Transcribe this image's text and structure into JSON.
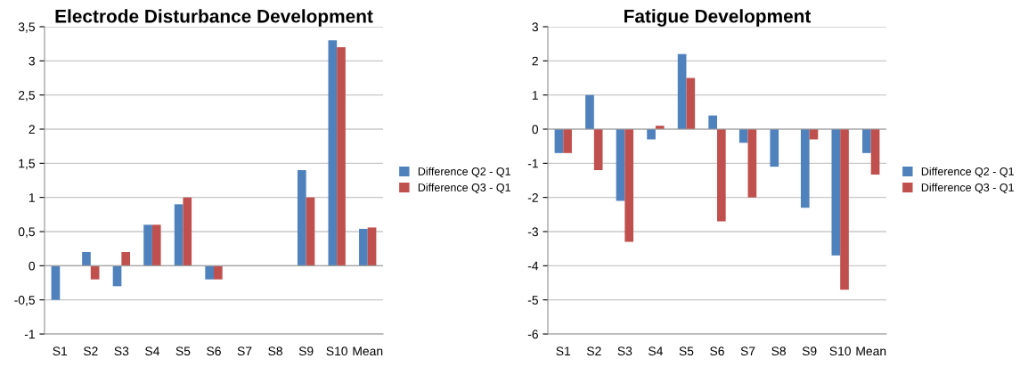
{
  "chart_data": [
    {
      "type": "bar",
      "title": "Electrode Disturbance Development",
      "categories": [
        "S1",
        "S2",
        "S3",
        "S4",
        "S5",
        "S6",
        "S7",
        "S8",
        "S9",
        "S10",
        "Mean"
      ],
      "series": [
        {
          "name": "Difference Q2 - Q1",
          "color": "#4f81bd",
          "values": [
            -0.5,
            0.2,
            -0.3,
            0.6,
            0.9,
            -0.2,
            0,
            0,
            1.4,
            3.3,
            0.54
          ]
        },
        {
          "name": "Difference Q3 - Q1",
          "color": "#c0504d",
          "values": [
            0,
            -0.2,
            0.2,
            0.6,
            1.0,
            -0.2,
            0,
            0,
            1.0,
            3.2,
            0.56
          ]
        }
      ],
      "ylim": [
        -1,
        3.5
      ],
      "yticks": [
        -1,
        {
          "value": -0.5,
          "label": "-0,5"
        },
        0,
        {
          "value": 0.5,
          "label": "0,5"
        },
        1,
        {
          "value": 1.5,
          "label": "1,5"
        },
        2,
        {
          "value": 2.5,
          "label": "2,5"
        },
        3,
        {
          "value": 3.5,
          "label": "3,5"
        }
      ],
      "grid": "y",
      "legend": "right"
    },
    {
      "type": "bar",
      "title": "Fatigue Development",
      "categories": [
        "S1",
        "S2",
        "S3",
        "S4",
        "S5",
        "S6",
        "S7",
        "S8",
        "S9",
        "S10",
        "Mean"
      ],
      "series": [
        {
          "name": "Difference Q2 - Q1",
          "color": "#4f81bd",
          "values": [
            -0.7,
            1.0,
            -2.1,
            -0.3,
            2.2,
            0.4,
            -0.4,
            -1.1,
            -2.3,
            -3.7,
            -0.7
          ]
        },
        {
          "name": "Difference Q3 - Q1",
          "color": "#c0504d",
          "values": [
            -0.7,
            -1.2,
            -3.3,
            0.1,
            1.5,
            -2.7,
            -2.0,
            0,
            -0.3,
            -4.7,
            -1.33
          ]
        }
      ],
      "ylim": [
        -6,
        3
      ],
      "yticks": [
        -6,
        -5,
        -4,
        -3,
        -2,
        -1,
        0,
        1,
        2,
        3
      ],
      "grid": "y",
      "legend": "right"
    }
  ]
}
